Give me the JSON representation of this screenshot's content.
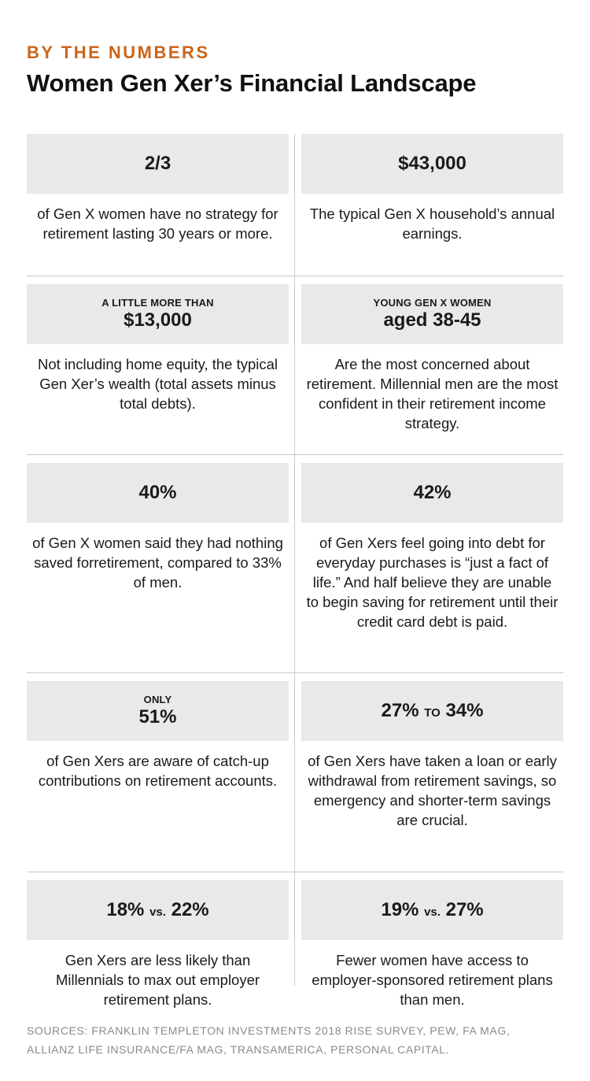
{
  "header": {
    "kicker": "BY THE NUMBERS",
    "title": "Women Gen Xer’s Financial Landscape"
  },
  "stats": [
    {
      "pre": "",
      "value": "2/3",
      "desc": "of Gen X women have no strategy for retirement lasting 30 years or more."
    },
    {
      "pre": "",
      "value": "$43,000",
      "desc": "The typical Gen X household’s annual earnings."
    },
    {
      "pre": "A LITTLE MORE THAN",
      "value": "$13,000",
      "desc": "Not including home equity, the typical Gen Xer’s wealth (total assets minus total debts)."
    },
    {
      "pre": "YOUNG GEN X WOMEN",
      "value": "aged 38-45",
      "desc": "Are the most concerned about retirement. Millennial men are the most confident in their retirement income strategy."
    },
    {
      "pre": "",
      "value": "40%",
      "desc": "of Gen X women said they had nothing saved forretirement, compared to 33% of men."
    },
    {
      "pre": "",
      "value": "42%",
      "desc": "of Gen Xers feel going into debt for everyday purchases is “just a fact of life.” And half believe they are unable to begin saving for retirement until their credit card debt is paid."
    },
    {
      "pre": "ONLY",
      "value": "51%",
      "desc": "of Gen Xers are aware of catch-up contributions on retirement accounts."
    },
    {
      "value_a": "27%",
      "joiner": "TO",
      "value_b": "34%",
      "desc": "of Gen Xers have taken a loan or early withdrawal from retirement savings, so emergency and shorter-term savings are crucial."
    },
    {
      "value_a": "18%",
      "joiner": "vs.",
      "value_b": "22%",
      "desc": "Gen Xers are less likely than Millennials to max out employer retirement plans."
    },
    {
      "value_a": "19%",
      "joiner": "vs.",
      "value_b": "27%",
      "desc": "Fewer women have access to employer-sponsored retirement plans than men."
    }
  ],
  "sources": {
    "line1": "SOURCES: FRANKLIN TEMPLETON INVESTMENTS 2018 RISE SURVEY, PEW, FA MAG,",
    "line2": "ALLIANZ LIFE INSURANCE/FA MAG, TRANSAMERICA, PERSONAL CAPITAL."
  },
  "colors": {
    "accent": "#c9651b",
    "box": "#e9e9eb",
    "rule": "#c8c8c8",
    "sources": "#8a8a8a"
  }
}
